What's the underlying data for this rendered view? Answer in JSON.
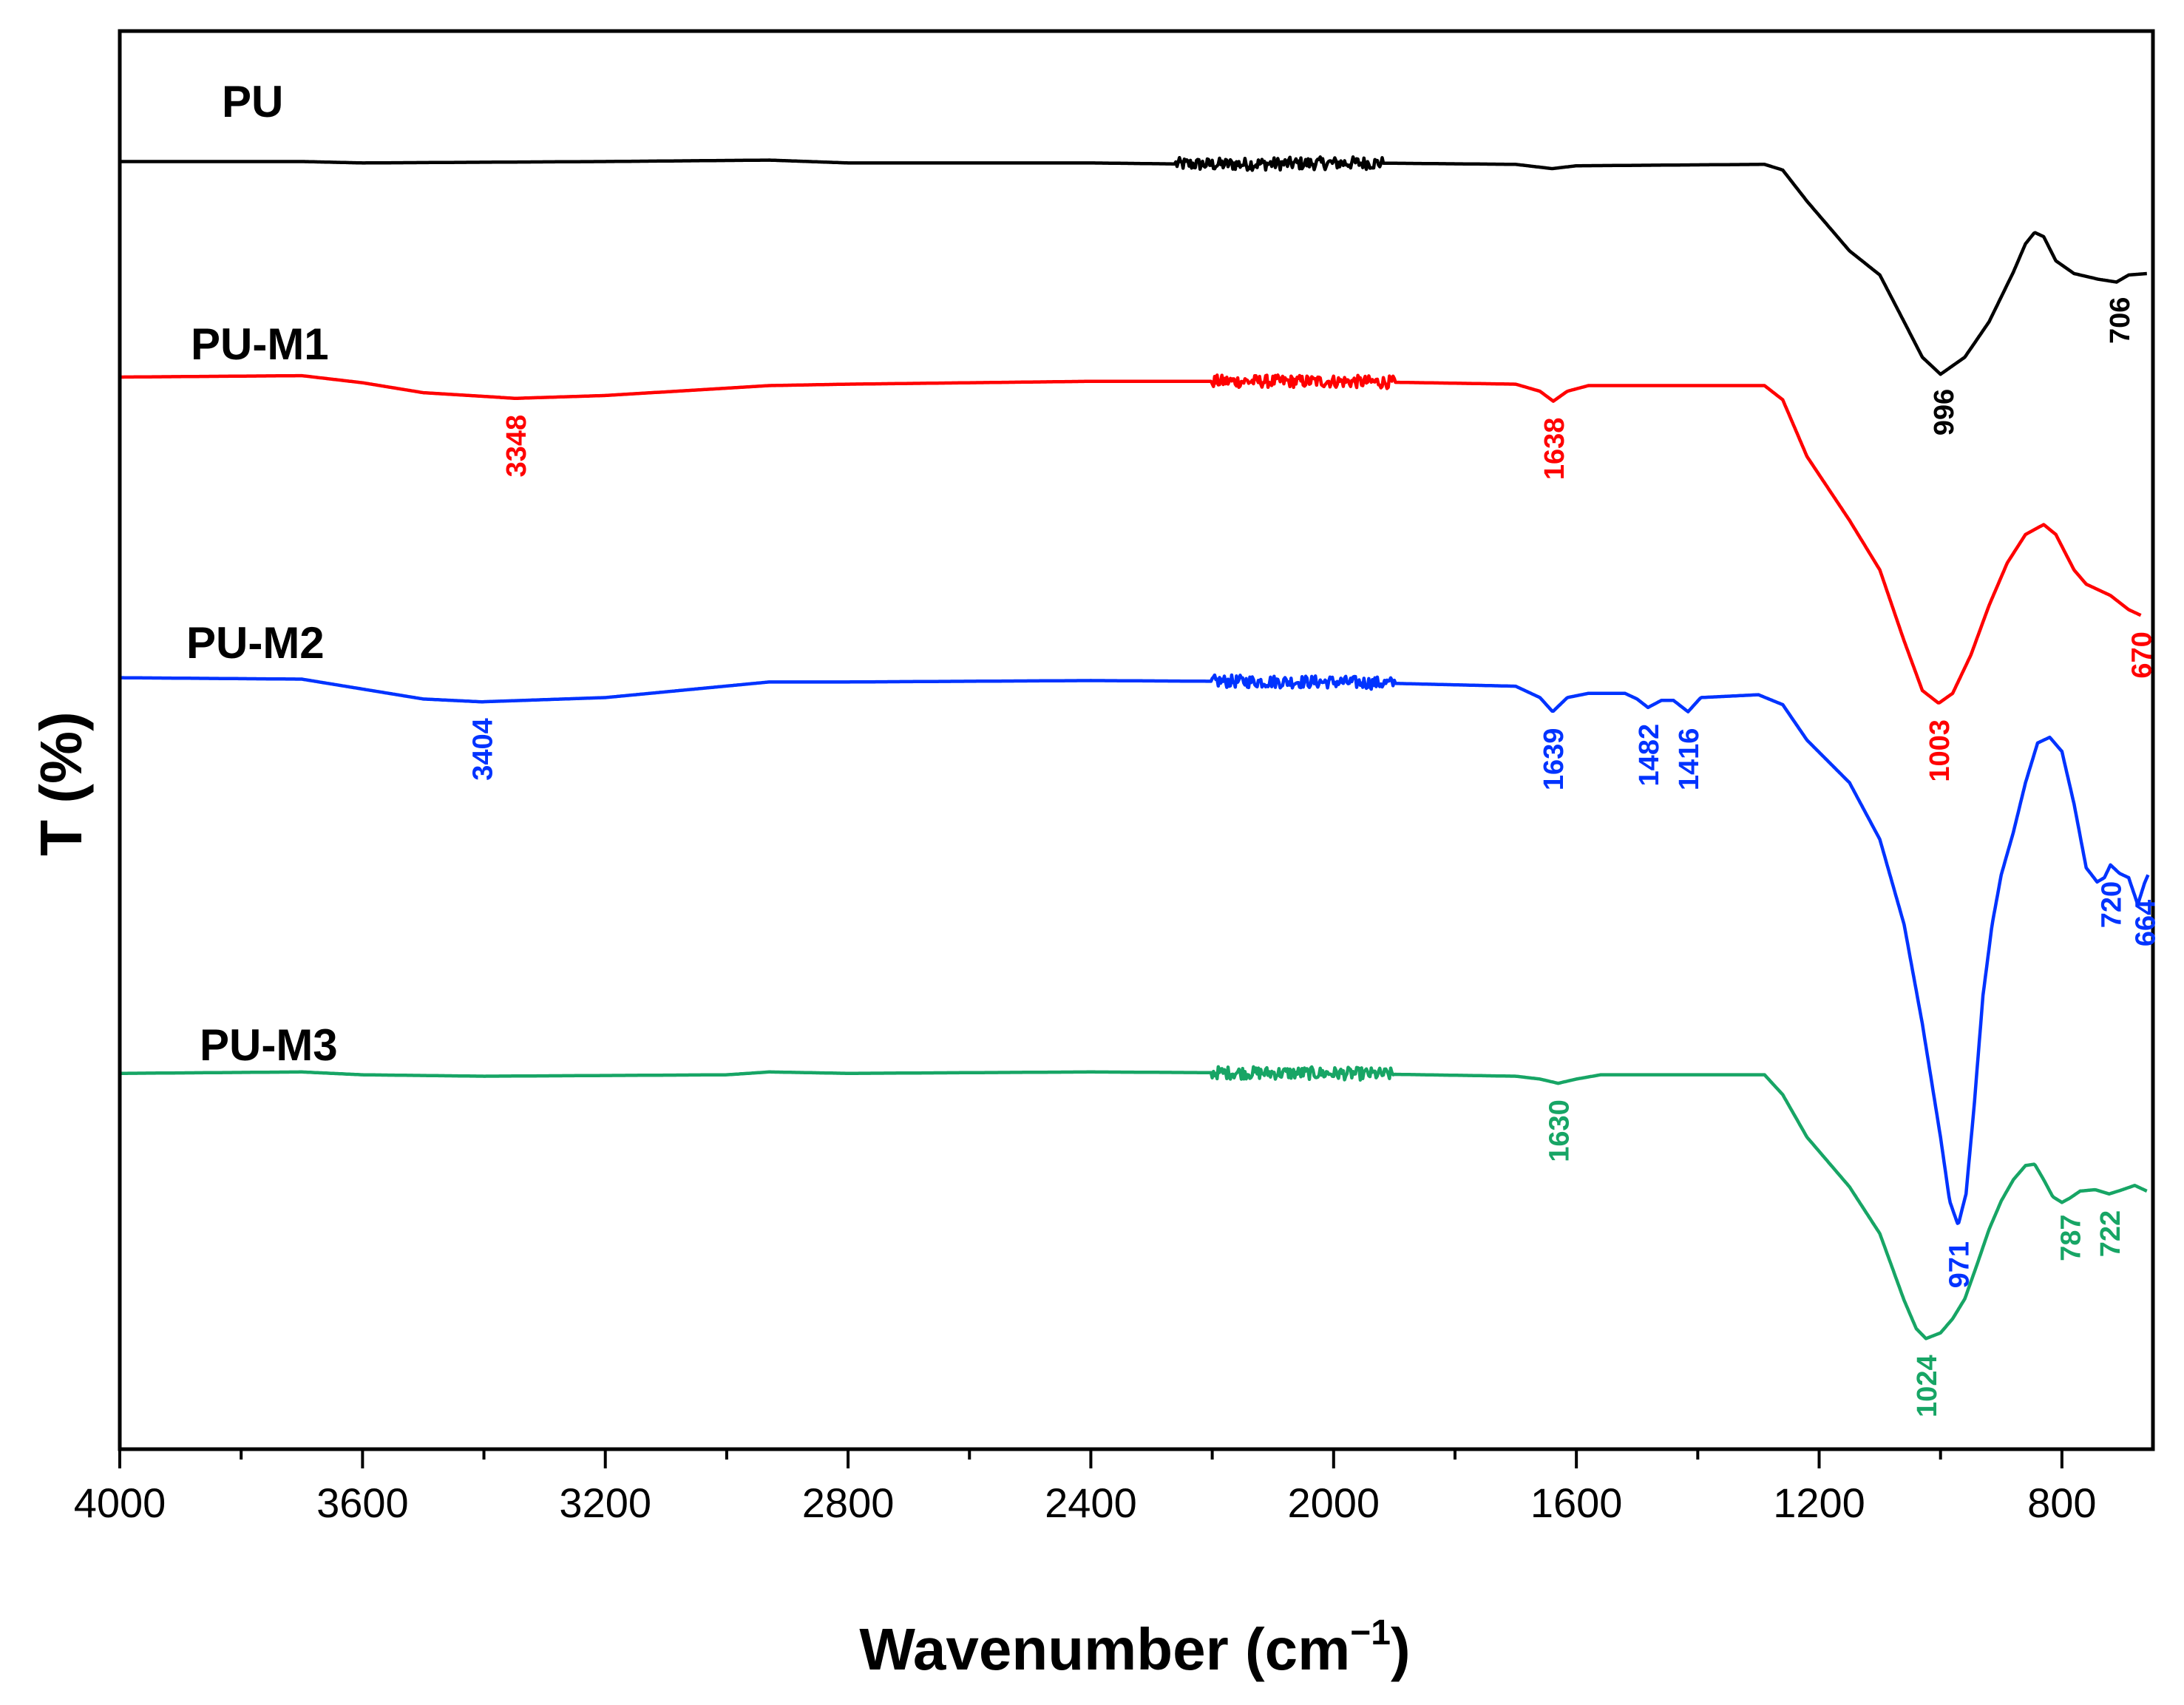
{
  "chart_data": {
    "type": "line",
    "title": "",
    "xlabel": "Wavenumber (cm",
    "xlabel_sup": "−1",
    "xlabel_close": ")",
    "ylabel": "T (%)",
    "xlim": [
      4000,
      650
    ],
    "ylim": [
      0,
      100
    ],
    "x_ticks": [
      4000,
      3600,
      3200,
      2800,
      2400,
      2000,
      1600,
      1200,
      800
    ],
    "x_tick_labels": [
      "4000",
      "3600",
      "3200",
      "2800",
      "2400",
      "2000",
      "1600",
      "1200",
      "800"
    ],
    "grid": false,
    "series": [
      {
        "name": "PU",
        "color": "#000000",
        "baseline": 90.8,
        "segments": [
          [
            4000,
            90.8
          ],
          [
            3800,
            90.8
          ],
          [
            3700,
            90.8
          ],
          [
            3600,
            90.7
          ],
          [
            3200,
            90.8
          ],
          [
            2930,
            90.9
          ],
          [
            2800,
            90.7
          ],
          [
            2400,
            90.7
          ],
          [
            2200,
            90.6
          ],
          [
            1960,
            90.7
          ],
          [
            1700,
            90.6
          ],
          [
            1640,
            90.3
          ],
          [
            1600,
            90.5
          ],
          [
            1290,
            90.6
          ],
          [
            1260,
            90.2
          ],
          [
            1220,
            88.0
          ],
          [
            1150,
            84.5
          ],
          [
            1100,
            82.8
          ],
          [
            1060,
            79.5
          ],
          [
            1030,
            77.0
          ],
          [
            1000,
            75.8
          ],
          [
            960,
            77.0
          ],
          [
            920,
            79.5
          ],
          [
            880,
            83.0
          ],
          [
            860,
            85.0
          ],
          [
            845,
            85.8
          ],
          [
            830,
            85.5
          ],
          [
            810,
            83.8
          ],
          [
            780,
            82.9
          ],
          [
            740,
            82.5
          ],
          [
            710,
            82.3
          ],
          [
            690,
            82.8
          ],
          [
            660,
            82.9
          ]
        ],
        "noise_ranges": [
          [
            2260,
            1920
          ]
        ],
        "peaks": [
          {
            "x": 996,
            "label": "996"
          },
          {
            "x": 706,
            "label": "706"
          }
        ]
      },
      {
        "name": "PU-M1",
        "color": "#ff0000",
        "segments": [
          [
            4000,
            75.6
          ],
          [
            3700,
            75.7
          ],
          [
            3600,
            75.2
          ],
          [
            3500,
            74.5
          ],
          [
            3348,
            74.1
          ],
          [
            3200,
            74.3
          ],
          [
            2930,
            75.0
          ],
          [
            2800,
            75.1
          ],
          [
            2400,
            75.3
          ],
          [
            2000,
            75.3
          ],
          [
            1700,
            75.1
          ],
          [
            1660,
            74.6
          ],
          [
            1638,
            73.9
          ],
          [
            1615,
            74.6
          ],
          [
            1580,
            75.0
          ],
          [
            1290,
            75.0
          ],
          [
            1260,
            74.0
          ],
          [
            1220,
            70.0
          ],
          [
            1150,
            65.5
          ],
          [
            1100,
            62.0
          ],
          [
            1060,
            57.0
          ],
          [
            1030,
            53.5
          ],
          [
            1003,
            52.6
          ],
          [
            980,
            53.3
          ],
          [
            950,
            56.0
          ],
          [
            920,
            59.5
          ],
          [
            890,
            62.5
          ],
          [
            860,
            64.5
          ],
          [
            830,
            65.2
          ],
          [
            810,
            64.5
          ],
          [
            780,
            62.0
          ],
          [
            760,
            61.0
          ],
          [
            720,
            60.2
          ],
          [
            690,
            59.2
          ],
          [
            670,
            58.8
          ]
        ],
        "noise_ranges": [
          [
            2200,
            1900
          ]
        ],
        "peaks": [
          {
            "x": 3348,
            "label": "3348"
          },
          {
            "x": 1638,
            "label": "1638"
          },
          {
            "x": 1003,
            "label": "1003"
          },
          {
            "x": 670,
            "label": "670"
          }
        ]
      },
      {
        "name": "PU-M2",
        "color": "#0033ff",
        "segments": [
          [
            4000,
            54.4
          ],
          [
            3700,
            54.3
          ],
          [
            3600,
            53.6
          ],
          [
            3500,
            52.9
          ],
          [
            3404,
            52.7
          ],
          [
            3200,
            53.0
          ],
          [
            2930,
            54.1
          ],
          [
            2800,
            54.1
          ],
          [
            2400,
            54.2
          ],
          [
            2000,
            54.1
          ],
          [
            1700,
            53.8
          ],
          [
            1660,
            53.0
          ],
          [
            1639,
            52.0
          ],
          [
            1615,
            53.0
          ],
          [
            1580,
            53.3
          ],
          [
            1520,
            53.3
          ],
          [
            1500,
            52.9
          ],
          [
            1482,
            52.3
          ],
          [
            1460,
            52.8
          ],
          [
            1440,
            52.8
          ],
          [
            1416,
            52.0
          ],
          [
            1395,
            53.0
          ],
          [
            1300,
            53.2
          ],
          [
            1260,
            52.5
          ],
          [
            1220,
            50.0
          ],
          [
            1150,
            47.0
          ],
          [
            1100,
            43.0
          ],
          [
            1060,
            37.0
          ],
          [
            1030,
            30.0
          ],
          [
            1000,
            22.0
          ],
          [
            985,
            17.5
          ],
          [
            971,
            15.8
          ],
          [
            958,
            18.0
          ],
          [
            945,
            24.0
          ],
          [
            930,
            32.0
          ],
          [
            915,
            37.0
          ],
          [
            900,
            40.5
          ],
          [
            880,
            43.5
          ],
          [
            860,
            47.0
          ],
          [
            840,
            49.8
          ],
          [
            820,
            50.2
          ],
          [
            800,
            49.2
          ],
          [
            780,
            45.5
          ],
          [
            760,
            41.0
          ],
          [
            742,
            40.0
          ],
          [
            730,
            40.3
          ],
          [
            720,
            41.2
          ],
          [
            705,
            40.6
          ],
          [
            690,
            40.3
          ],
          [
            675,
            38.4
          ],
          [
            664,
            39.9
          ],
          [
            658,
            40.5
          ]
        ],
        "noise_ranges": [
          [
            2200,
            1900
          ]
        ],
        "peaks": [
          {
            "x": 3404,
            "label": "3404"
          },
          {
            "x": 1639,
            "label": "1639"
          },
          {
            "x": 1482,
            "label": "1482"
          },
          {
            "x": 1416,
            "label": "1416"
          },
          {
            "x": 971,
            "label": "971"
          },
          {
            "x": 720,
            "label": "720"
          },
          {
            "x": 664,
            "label": "664"
          }
        ]
      },
      {
        "name": "PU-M3",
        "color": "#17a565",
        "segments": [
          [
            4000,
            26.5
          ],
          [
            3700,
            26.6
          ],
          [
            3600,
            26.4
          ],
          [
            3400,
            26.3
          ],
          [
            3000,
            26.4
          ],
          [
            2930,
            26.6
          ],
          [
            2800,
            26.5
          ],
          [
            2400,
            26.6
          ],
          [
            2000,
            26.5
          ],
          [
            1700,
            26.3
          ],
          [
            1660,
            26.1
          ],
          [
            1630,
            25.8
          ],
          [
            1600,
            26.1
          ],
          [
            1560,
            26.4
          ],
          [
            1290,
            26.4
          ],
          [
            1260,
            25.0
          ],
          [
            1220,
            22.0
          ],
          [
            1150,
            18.5
          ],
          [
            1100,
            15.2
          ],
          [
            1060,
            10.5
          ],
          [
            1040,
            8.5
          ],
          [
            1024,
            7.8
          ],
          [
            1000,
            8.2
          ],
          [
            980,
            9.2
          ],
          [
            960,
            10.6
          ],
          [
            940,
            13.0
          ],
          [
            920,
            15.5
          ],
          [
            900,
            17.5
          ],
          [
            880,
            19.0
          ],
          [
            860,
            20.0
          ],
          [
            845,
            20.1
          ],
          [
            830,
            19.0
          ],
          [
            815,
            17.8
          ],
          [
            800,
            17.4
          ],
          [
            787,
            17.7
          ],
          [
            770,
            18.2
          ],
          [
            745,
            18.3
          ],
          [
            722,
            18.0
          ],
          [
            700,
            18.3
          ],
          [
            680,
            18.6
          ],
          [
            660,
            18.2
          ]
        ],
        "noise_ranges": [
          [
            2200,
            1900
          ]
        ],
        "peaks": [
          {
            "x": 1630,
            "label": "1630"
          },
          {
            "x": 1024,
            "label": "1024"
          },
          {
            "x": 787,
            "label": "787"
          },
          {
            "x": 722,
            "label": "722"
          }
        ]
      }
    ]
  }
}
